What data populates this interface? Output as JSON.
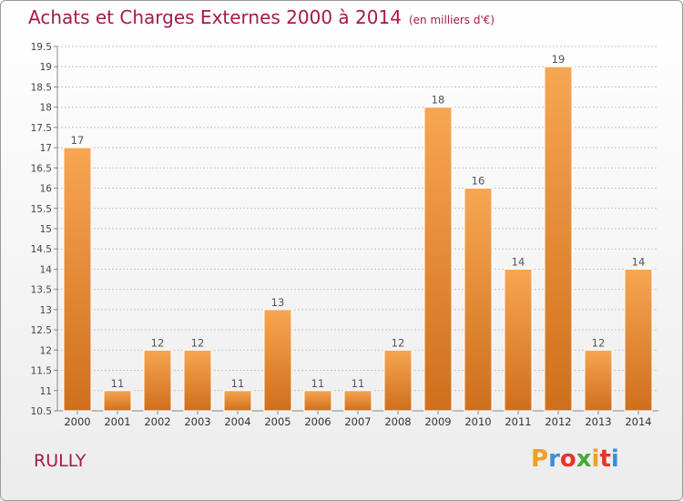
{
  "header": {
    "title": "Achats et Charges Externes 2000 à 2014",
    "subtitle": "(en milliers d'€)"
  },
  "footer": {
    "town": "RULLY",
    "logo_letters": [
      "P",
      "r",
      "o",
      "x",
      "i",
      "t",
      "i"
    ],
    "logo_colors": [
      "#f0a020",
      "#3c8fd8",
      "#e8342a",
      "#4aa83a",
      "#f0a020",
      "#e8342a",
      "#3c8fd8"
    ]
  },
  "colors": {
    "bar_top": "#f7a652",
    "bar_bottom": "#cf6f1c",
    "grid": "#c8c8c8",
    "axis": "#888888"
  },
  "chart_data": {
    "type": "bar",
    "title": "Achats et Charges Externes 2000 à 2014",
    "subtitle": "(en milliers d'€)",
    "categories": [
      "2000",
      "2001",
      "2002",
      "2003",
      "2004",
      "2005",
      "2006",
      "2007",
      "2008",
      "2009",
      "2010",
      "2011",
      "2012",
      "2013",
      "2014"
    ],
    "values": [
      17,
      11,
      12,
      12,
      11,
      13,
      11,
      11,
      12,
      18,
      16,
      14,
      19,
      12,
      14
    ],
    "value_labels": [
      "17",
      "11",
      "12",
      "12",
      "11",
      "13",
      "11",
      "11",
      "12",
      "18",
      "16",
      "14",
      "19",
      "12",
      "14"
    ],
    "ylim": [
      10.5,
      19.5
    ],
    "yticks": [
      10.5,
      11,
      11.5,
      12,
      12.5,
      13,
      13.5,
      14,
      14.5,
      15,
      15.5,
      16,
      16.5,
      17,
      17.5,
      18,
      18.5,
      19,
      19.5
    ],
    "ytick_labels": [
      "10.5",
      "11",
      "11.5",
      "12",
      "12.5",
      "13",
      "13.5",
      "14",
      "14.5",
      "15",
      "15.5",
      "16",
      "16.5",
      "17",
      "17.5",
      "18",
      "18.5",
      "19",
      "19.5"
    ],
    "grid": true,
    "xlabel": "",
    "ylabel": ""
  }
}
